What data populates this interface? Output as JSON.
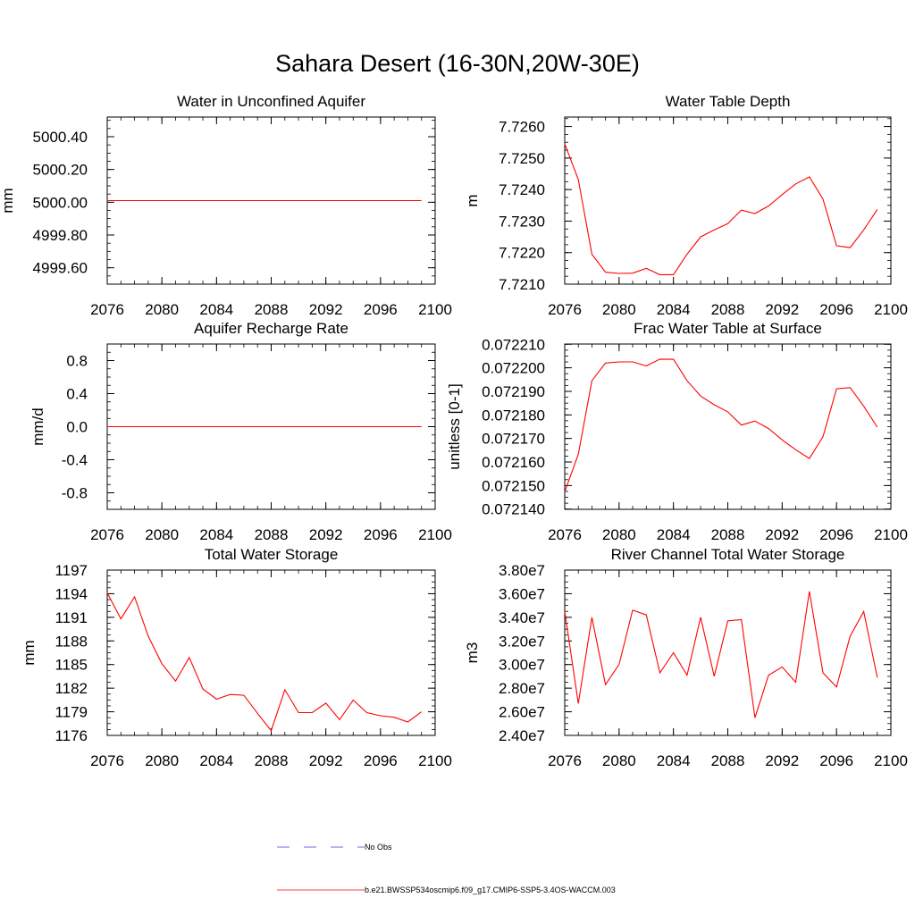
{
  "title": "Sahara Desert (16-30N,20W-30E)",
  "colors": {
    "model": "#ff0000",
    "obs": "#3b3bd6",
    "axis": "#000000"
  },
  "legend": {
    "obs_label": "No Obs",
    "model_label": "b.e21.BWSSP534oscmip6.f09_g17.CMIP6-SSP5-3.4OS-WACCM.003"
  },
  "chart_data": [
    {
      "type": "line",
      "title": "Water in Unconfined Aquifer",
      "ylabel": "mm",
      "xlim": [
        2076,
        2100
      ],
      "ylim": [
        4999.5,
        5000.52
      ],
      "xticks": [
        2076,
        2080,
        2084,
        2088,
        2092,
        2096,
        2100
      ],
      "xtick_labels": [
        "2076",
        "2080",
        "2084",
        "2088",
        "2092",
        "2096",
        "2100"
      ],
      "yticks": [
        4999.6,
        4999.8,
        5000.0,
        5000.2,
        5000.4
      ],
      "ytick_labels": [
        "4999.60",
        "4999.80",
        "5000.00",
        "5000.20",
        "5000.40"
      ],
      "x": [
        2076,
        2077,
        2078,
        2079,
        2080,
        2081,
        2082,
        2083,
        2084,
        2085,
        2086,
        2087,
        2088,
        2089,
        2090,
        2091,
        2092,
        2093,
        2094,
        2095,
        2096,
        2097,
        2098,
        2099
      ],
      "values": [
        5000.01,
        5000.01,
        5000.01,
        5000.01,
        5000.01,
        5000.01,
        5000.01,
        5000.01,
        5000.01,
        5000.01,
        5000.01,
        5000.01,
        5000.01,
        5000.01,
        5000.01,
        5000.01,
        5000.01,
        5000.01,
        5000.01,
        5000.01,
        5000.01,
        5000.01,
        5000.01,
        5000.01
      ]
    },
    {
      "type": "line",
      "title": "Water Table Depth",
      "ylabel": "m",
      "xlim": [
        2076,
        2100
      ],
      "ylim": [
        7.721,
        7.7263
      ],
      "xticks": [
        2076,
        2080,
        2084,
        2088,
        2092,
        2096,
        2100
      ],
      "xtick_labels": [
        "2076",
        "2080",
        "2084",
        "2088",
        "2092",
        "2096",
        "2100"
      ],
      "yticks": [
        7.721,
        7.722,
        7.723,
        7.724,
        7.725,
        7.726
      ],
      "ytick_labels": [
        "7.7210",
        "7.7220",
        "7.7230",
        "7.7240",
        "7.7250",
        "7.7260"
      ],
      "x": [
        2076,
        2077,
        2078,
        2079,
        2080,
        2081,
        2082,
        2083,
        2084,
        2085,
        2086,
        2087,
        2088,
        2089,
        2090,
        2091,
        2092,
        2093,
        2094,
        2095,
        2096,
        2097,
        2098,
        2099
      ],
      "values": [
        7.72545,
        7.72432,
        7.72195,
        7.72138,
        7.72134,
        7.72135,
        7.7215,
        7.7213,
        7.7213,
        7.72195,
        7.7225,
        7.72272,
        7.72292,
        7.72335,
        7.72324,
        7.72348,
        7.72384,
        7.72418,
        7.7244,
        7.7237,
        7.72222,
        7.72216,
        7.72272,
        7.72337
      ]
    },
    {
      "type": "line",
      "title": "Aquifer Recharge Rate",
      "ylabel": "mm/d",
      "xlim": [
        2076,
        2100
      ],
      "ylim": [
        -1.0,
        1.0
      ],
      "xticks": [
        2076,
        2080,
        2084,
        2088,
        2092,
        2096,
        2100
      ],
      "xtick_labels": [
        "2076",
        "2080",
        "2084",
        "2088",
        "2092",
        "2096",
        "2100"
      ],
      "yticks": [
        -0.8,
        -0.4,
        0.0,
        0.4,
        0.8
      ],
      "ytick_labels": [
        "-0.8",
        "-0.4",
        "0.0",
        "0.4",
        "0.8"
      ],
      "x": [
        2076,
        2077,
        2078,
        2079,
        2080,
        2081,
        2082,
        2083,
        2084,
        2085,
        2086,
        2087,
        2088,
        2089,
        2090,
        2091,
        2092,
        2093,
        2094,
        2095,
        2096,
        2097,
        2098,
        2099
      ],
      "values": [
        0,
        0,
        0,
        0,
        0,
        0,
        0,
        0,
        0,
        0,
        0,
        0,
        0,
        0,
        0,
        0,
        0,
        0,
        0,
        0,
        0,
        0,
        0,
        0
      ]
    },
    {
      "type": "line",
      "title": "Frac Water Table at Surface",
      "ylabel": "unitless [0-1]",
      "xlim": [
        2076,
        2100
      ],
      "ylim": [
        0.0721399,
        0.0722101
      ],
      "xticks": [
        2076,
        2080,
        2084,
        2088,
        2092,
        2096,
        2100
      ],
      "xtick_labels": [
        "2076",
        "2080",
        "2084",
        "2088",
        "2092",
        "2096",
        "2100"
      ],
      "yticks": [
        0.07214,
        0.07215,
        0.07216,
        0.07217,
        0.07218,
        0.07219,
        0.0722,
        0.07221
      ],
      "ytick_labels": [
        "0.072140",
        "0.072150",
        "0.072160",
        "0.072170",
        "0.072180",
        "0.072190",
        "0.072200",
        "0.072210"
      ],
      "x": [
        2076,
        2077,
        2078,
        2079,
        2080,
        2081,
        2082,
        2083,
        2084,
        2085,
        2086,
        2087,
        2088,
        2089,
        2090,
        2091,
        2092,
        2093,
        2094,
        2095,
        2096,
        2097,
        2098,
        2099
      ],
      "values": [
        0.0721473,
        0.0721633,
        0.0721945,
        0.072202,
        0.0722025,
        0.0722025,
        0.0722008,
        0.0722037,
        0.0722036,
        0.0721945,
        0.072188,
        0.0721843,
        0.0721813,
        0.0721757,
        0.0721774,
        0.0721742,
        0.0721694,
        0.0721652,
        0.0721615,
        0.0721707,
        0.0721911,
        0.0721916,
        0.0721837,
        0.0721748
      ]
    },
    {
      "type": "line",
      "title": "Total Water Storage",
      "ylabel": "mm",
      "xlim": [
        2076,
        2100
      ],
      "ylim": [
        1176,
        1197
      ],
      "xticks": [
        2076,
        2080,
        2084,
        2088,
        2092,
        2096,
        2100
      ],
      "xtick_labels": [
        "2076",
        "2080",
        "2084",
        "2088",
        "2092",
        "2096",
        "2100"
      ],
      "yticks": [
        1176,
        1179,
        1182,
        1185,
        1188,
        1191,
        1194,
        1197
      ],
      "ytick_labels": [
        "1176",
        "1179",
        "1182",
        "1185",
        "1188",
        "1191",
        "1194",
        "1197"
      ],
      "x": [
        2076,
        2077,
        2078,
        2079,
        2080,
        2081,
        2082,
        2083,
        2084,
        2085,
        2086,
        2087,
        2088,
        2089,
        2090,
        2091,
        2092,
        2093,
        2094,
        2095,
        2096,
        2097,
        2098,
        2099
      ],
      "values": [
        1194.1,
        1190.8,
        1193.6,
        1188.6,
        1185.1,
        1182.9,
        1185.9,
        1181.9,
        1180.6,
        1181.2,
        1181.1,
        1178.8,
        1176.6,
        1181.8,
        1178.9,
        1178.9,
        1180.1,
        1178.0,
        1180.5,
        1178.9,
        1178.5,
        1178.3,
        1177.7,
        1179.0
      ]
    },
    {
      "type": "line",
      "title": "River Channel Total Water Storage",
      "ylabel": "m3",
      "xlim": [
        2076,
        2100
      ],
      "ylim": [
        24000000,
        38000000
      ],
      "xticks": [
        2076,
        2080,
        2084,
        2088,
        2092,
        2096,
        2100
      ],
      "xtick_labels": [
        "2076",
        "2080",
        "2084",
        "2088",
        "2092",
        "2096",
        "2100"
      ],
      "yticks": [
        24000000,
        26000000,
        28000000,
        30000000,
        32000000,
        34000000,
        36000000,
        38000000
      ],
      "ytick_labels": [
        "2.40e7",
        "2.60e7",
        "2.80e7",
        "3.00e7",
        "3.20e7",
        "3.40e7",
        "3.60e7",
        "3.80e7"
      ],
      "x": [
        2076,
        2077,
        2078,
        2079,
        2080,
        2081,
        2082,
        2083,
        2084,
        2085,
        2086,
        2087,
        2088,
        2089,
        2090,
        2091,
        2092,
        2093,
        2094,
        2095,
        2096,
        2097,
        2098,
        2099
      ],
      "values": [
        34500000,
        26700000,
        34000000,
        28300000,
        30000000,
        34600000,
        34200000,
        29300000,
        31000000,
        29100000,
        34000000,
        29000000,
        33700000,
        33800000,
        25500000,
        29100000,
        29800000,
        28500000,
        36200000,
        29300000,
        28100000,
        32400000,
        34500000,
        28900000
      ]
    }
  ]
}
